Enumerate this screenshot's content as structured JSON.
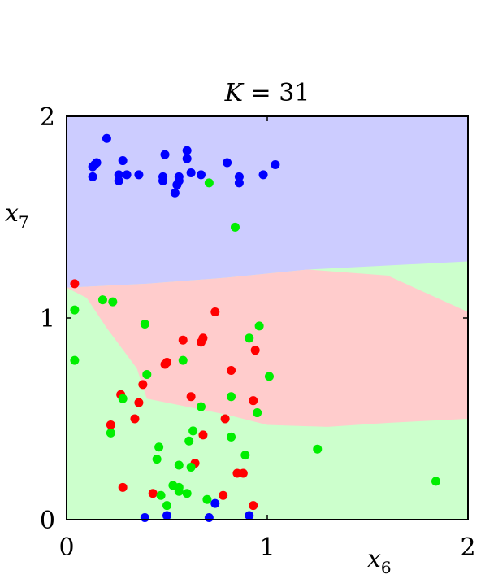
{
  "chart_data": {
    "type": "scatter",
    "title_var": "K",
    "title_eq": " = 31",
    "xlabel_base": "x",
    "xlabel_sub": "6",
    "ylabel_base": "x",
    "ylabel_sub": "7",
    "xlim": [
      0,
      2
    ],
    "ylim": [
      0,
      2
    ],
    "xticks": [
      "0",
      "1",
      "2"
    ],
    "yticks": [
      "0",
      "1",
      "2"
    ],
    "grid": false,
    "colors": {
      "blue_region": "#ccccff",
      "red_region": "#ffcccc",
      "green_region": "#ccffcc",
      "blue": "#0000ff",
      "red": "#ff0000",
      "green": "#00ee00"
    },
    "regions": {
      "blue_green_boundary": [
        [
          0,
          1.15
        ],
        [
          0.4,
          1.17
        ],
        [
          0.8,
          1.2
        ],
        [
          1.2,
          1.24
        ],
        [
          1.6,
          1.26
        ],
        [
          2,
          1.28
        ]
      ],
      "red_blue_boundary": [
        [
          0,
          1.15
        ],
        [
          0.4,
          1.17
        ],
        [
          0.8,
          1.2
        ],
        [
          1.2,
          1.24
        ],
        [
          1.6,
          1.21
        ],
        [
          2,
          1.03
        ]
      ],
      "red_lower_boundary": [
        [
          0.1,
          1.1
        ],
        [
          0.2,
          0.95
        ],
        [
          0.35,
          0.75
        ],
        [
          0.4,
          0.6
        ],
        [
          0.6,
          0.56
        ],
        [
          0.8,
          0.52
        ],
        [
          1.0,
          0.47
        ],
        [
          1.3,
          0.46
        ],
        [
          1.6,
          0.48
        ],
        [
          2,
          0.5
        ]
      ]
    },
    "series": [
      {
        "color": "blue",
        "points": [
          [
            0.2,
            1.89
          ],
          [
            0.13,
            1.75
          ],
          [
            0.14,
            1.76
          ],
          [
            0.15,
            1.77
          ],
          [
            0.13,
            1.7
          ],
          [
            0.28,
            1.78
          ],
          [
            0.26,
            1.71
          ],
          [
            0.26,
            1.68
          ],
          [
            0.3,
            1.71
          ],
          [
            0.36,
            1.71
          ],
          [
            0.49,
            1.81
          ],
          [
            0.6,
            1.83
          ],
          [
            0.6,
            1.79
          ],
          [
            0.48,
            1.7
          ],
          [
            0.48,
            1.68
          ],
          [
            0.56,
            1.68
          ],
          [
            0.55,
            1.66
          ],
          [
            0.54,
            1.62
          ],
          [
            0.56,
            1.7
          ],
          [
            0.62,
            1.72
          ],
          [
            0.67,
            1.71
          ],
          [
            0.8,
            1.77
          ],
          [
            0.86,
            1.7
          ],
          [
            0.86,
            1.67
          ],
          [
            0.98,
            1.71
          ],
          [
            1.04,
            1.76
          ],
          [
            0.39,
            0.01
          ],
          [
            0.5,
            0.02
          ],
          [
            0.71,
            0.01
          ],
          [
            0.74,
            0.08
          ],
          [
            0.91,
            0.02
          ]
        ]
      },
      {
        "color": "red",
        "points": [
          [
            0.04,
            1.17
          ],
          [
            0.74,
            1.03
          ],
          [
            0.58,
            0.89
          ],
          [
            0.67,
            0.88
          ],
          [
            0.68,
            0.9
          ],
          [
            0.5,
            0.78
          ],
          [
            0.49,
            0.77
          ],
          [
            0.94,
            0.84
          ],
          [
            0.82,
            0.74
          ],
          [
            0.38,
            0.67
          ],
          [
            0.27,
            0.62
          ],
          [
            0.62,
            0.61
          ],
          [
            0.36,
            0.58
          ],
          [
            0.93,
            0.59
          ],
          [
            0.34,
            0.5
          ],
          [
            0.79,
            0.5
          ],
          [
            0.22,
            0.47
          ],
          [
            0.68,
            0.42
          ],
          [
            0.64,
            0.28
          ],
          [
            0.85,
            0.23
          ],
          [
            0.88,
            0.23
          ],
          [
            0.28,
            0.16
          ],
          [
            0.43,
            0.13
          ],
          [
            0.78,
            0.12
          ],
          [
            0.93,
            0.07
          ]
        ]
      },
      {
        "color": "green",
        "points": [
          [
            0.71,
            1.67
          ],
          [
            0.84,
            1.45
          ],
          [
            0.04,
            1.04
          ],
          [
            0.18,
            1.09
          ],
          [
            0.23,
            1.08
          ],
          [
            0.39,
            0.97
          ],
          [
            0.96,
            0.96
          ],
          [
            0.91,
            0.9
          ],
          [
            0.58,
            0.79
          ],
          [
            0.04,
            0.79
          ],
          [
            0.4,
            0.72
          ],
          [
            1.01,
            0.71
          ],
          [
            0.28,
            0.6
          ],
          [
            0.82,
            0.61
          ],
          [
            0.67,
            0.56
          ],
          [
            0.95,
            0.53
          ],
          [
            0.63,
            0.44
          ],
          [
            0.22,
            0.43
          ],
          [
            0.61,
            0.39
          ],
          [
            0.82,
            0.41
          ],
          [
            0.46,
            0.36
          ],
          [
            1.25,
            0.35
          ],
          [
            0.89,
            0.32
          ],
          [
            0.45,
            0.3
          ],
          [
            0.56,
            0.27
          ],
          [
            0.62,
            0.26
          ],
          [
            0.53,
            0.17
          ],
          [
            0.56,
            0.16
          ],
          [
            0.56,
            0.14
          ],
          [
            0.6,
            0.13
          ],
          [
            0.47,
            0.12
          ],
          [
            0.5,
            0.07
          ],
          [
            0.7,
            0.1
          ],
          [
            1.84,
            0.19
          ]
        ]
      }
    ]
  }
}
